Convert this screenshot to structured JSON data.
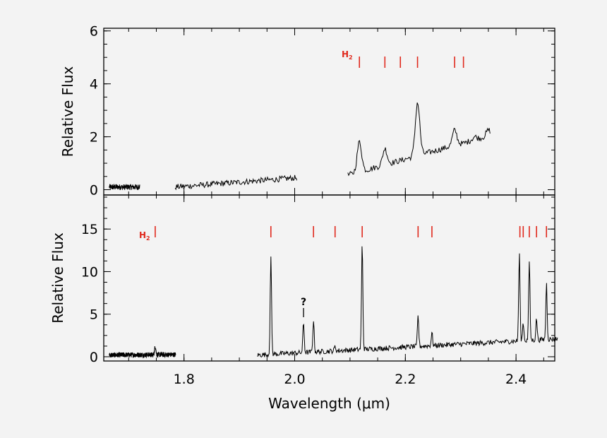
{
  "chart_data": [
    {
      "type": "line",
      "panel": "top",
      "ylabel": "Relative Flux",
      "xlim": [
        1.655,
        2.47
      ],
      "ylim": [
        -0.2,
        6.1
      ],
      "yticks": [
        0,
        2,
        4,
        6
      ],
      "line_marker_label": "H",
      "line_marker_sub": "2",
      "line_markers": [
        2.117,
        2.163,
        2.191,
        2.222,
        2.289,
        2.305
      ],
      "continuum": [
        {
          "x": [
            1.665,
            1.72
          ],
          "y": [
            0.1,
            0.1
          ]
        },
        {
          "x": [
            1.784,
            2.004
          ],
          "y": [
            0.1,
            0.45
          ]
        },
        {
          "x": [
            2.096,
            2.353
          ],
          "y": [
            0.55,
            2.05
          ]
        }
      ],
      "peaks": [
        {
          "x": 2.117,
          "y": 1.82
        },
        {
          "x": 2.163,
          "y": 1.55
        },
        {
          "x": 2.191,
          "y": 1.1
        },
        {
          "x": 2.222,
          "y": 3.3
        },
        {
          "x": 2.289,
          "y": 2.25
        },
        {
          "x": 2.305,
          "y": 1.75
        },
        {
          "x": 2.325,
          "y": 2.0
        },
        {
          "x": 2.35,
          "y": 2.25
        }
      ]
    },
    {
      "type": "line",
      "panel": "bottom",
      "xlabel": "Wavelength (μm)",
      "ylabel": "Relative Flux",
      "xlim": [
        1.655,
        2.47
      ],
      "ylim": [
        -0.5,
        19
      ],
      "xticks": [
        1.8,
        2.0,
        2.2,
        2.4
      ],
      "xticklabels": [
        "1.8",
        "2.0",
        "2.2",
        "2.4"
      ],
      "yticks": [
        0,
        5,
        10,
        15
      ],
      "line_marker_label": "H",
      "line_marker_sub": "2",
      "line_markers": [
        1.748,
        1.957,
        2.034,
        2.073,
        2.122,
        2.223,
        2.248,
        2.407,
        2.413,
        2.424,
        2.437,
        2.455
      ],
      "annotation": {
        "text": "?",
        "x": 2.016
      },
      "continuum": [
        {
          "x": [
            1.665,
            1.785
          ],
          "y": [
            0.2,
            0.25
          ]
        },
        {
          "x": [
            1.933,
            2.475
          ],
          "y": [
            0.2,
            2.1
          ]
        }
      ],
      "peaks": [
        {
          "x": 1.748,
          "y": 1.2
        },
        {
          "x": 1.957,
          "y": 11.5
        },
        {
          "x": 2.016,
          "y": 4.0
        },
        {
          "x": 2.034,
          "y": 4.3
        },
        {
          "x": 2.073,
          "y": 1.2
        },
        {
          "x": 2.122,
          "y": 13.3
        },
        {
          "x": 2.223,
          "y": 4.8
        },
        {
          "x": 2.248,
          "y": 2.8
        },
        {
          "x": 2.406,
          "y": 12.1
        },
        {
          "x": 2.413,
          "y": 4.0
        },
        {
          "x": 2.424,
          "y": 11.3
        },
        {
          "x": 2.437,
          "y": 4.5
        },
        {
          "x": 2.455,
          "y": 8.6
        }
      ]
    }
  ]
}
